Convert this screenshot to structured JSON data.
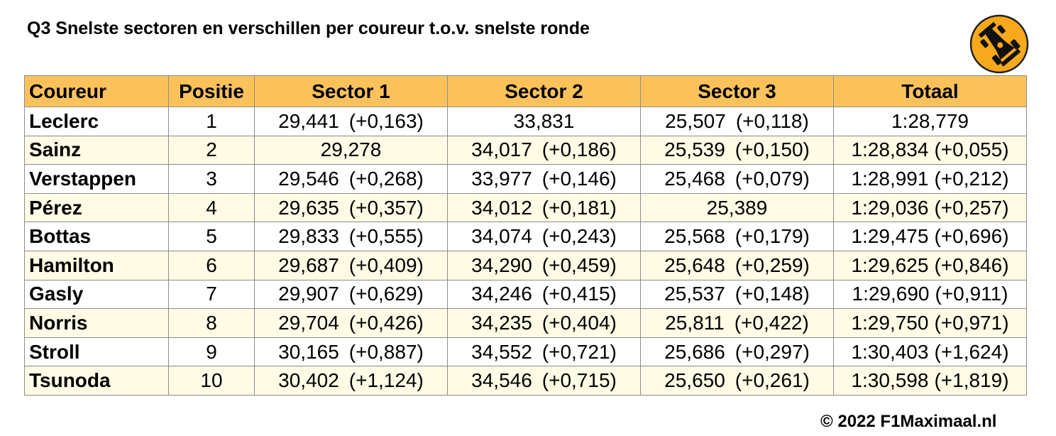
{
  "title": "Q3 Snelste sectoren en verschillen per coureur t.o.v. snelste ronde",
  "footer": "© 2022 F1Maximaal.nl",
  "colors": {
    "header_bg": "#fbc25c",
    "row_alt_bg": "#fffbe5",
    "logo_bg": "#f7a81b"
  },
  "logo_icon": "race-car-icon",
  "chart_data": {
    "type": "table",
    "columns": [
      "Coureur",
      "Positie",
      "Sector 1",
      "Sector 2",
      "Sector 3",
      "Totaal"
    ],
    "rows": [
      {
        "driver": "Leclerc",
        "pos": "1",
        "s1": "29,441",
        "s1d": "(+0,163)",
        "s2": "33,831",
        "s2d": "",
        "s3": "25,507",
        "s3d": "(+0,118)",
        "tot": "1:28,779",
        "totd": ""
      },
      {
        "driver": "Sainz",
        "pos": "2",
        "s1": "29,278",
        "s1d": "",
        "s2": "34,017",
        "s2d": "(+0,186)",
        "s3": "25,539",
        "s3d": "(+0,150)",
        "tot": "1:28,834",
        "totd": "(+0,055)"
      },
      {
        "driver": "Verstappen",
        "pos": "3",
        "s1": "29,546",
        "s1d": "(+0,268)",
        "s2": "33,977",
        "s2d": "(+0,146)",
        "s3": "25,468",
        "s3d": "(+0,079)",
        "tot": "1:28,991",
        "totd": "(+0,212)"
      },
      {
        "driver": "Pérez",
        "pos": "4",
        "s1": "29,635",
        "s1d": "(+0,357)",
        "s2": "34,012",
        "s2d": "(+0,181)",
        "s3": "25,389",
        "s3d": "",
        "tot": "1:29,036",
        "totd": "(+0,257)"
      },
      {
        "driver": "Bottas",
        "pos": "5",
        "s1": "29,833",
        "s1d": "(+0,555)",
        "s2": "34,074",
        "s2d": "(+0,243)",
        "s3": "25,568",
        "s3d": "(+0,179)",
        "tot": "1:29,475",
        "totd": "(+0,696)"
      },
      {
        "driver": "Hamilton",
        "pos": "6",
        "s1": "29,687",
        "s1d": "(+0,409)",
        "s2": "34,290",
        "s2d": "(+0,459)",
        "s3": "25,648",
        "s3d": "(+0,259)",
        "tot": "1:29,625",
        "totd": "(+0,846)"
      },
      {
        "driver": "Gasly",
        "pos": "7",
        "s1": "29,907",
        "s1d": "(+0,629)",
        "s2": "34,246",
        "s2d": "(+0,415)",
        "s3": "25,537",
        "s3d": "(+0,148)",
        "tot": "1:29,690",
        "totd": "(+0,911)"
      },
      {
        "driver": "Norris",
        "pos": "8",
        "s1": "29,704",
        "s1d": "(+0,426)",
        "s2": "34,235",
        "s2d": "(+0,404)",
        "s3": "25,811",
        "s3d": "(+0,422)",
        "tot": "1:29,750",
        "totd": "(+0,971)"
      },
      {
        "driver": "Stroll",
        "pos": "9",
        "s1": "30,165",
        "s1d": "(+0,887)",
        "s2": "34,552",
        "s2d": "(+0,721)",
        "s3": "25,686",
        "s3d": "(+0,297)",
        "tot": "1:30,403",
        "totd": "(+1,624)"
      },
      {
        "driver": "Tsunoda",
        "pos": "10",
        "s1": "30,402",
        "s1d": "(+1,124)",
        "s2": "34,546",
        "s2d": "(+0,715)",
        "s3": "25,650",
        "s3d": "(+0,261)",
        "tot": "1:30,598",
        "totd": "(+1,819)"
      }
    ]
  }
}
